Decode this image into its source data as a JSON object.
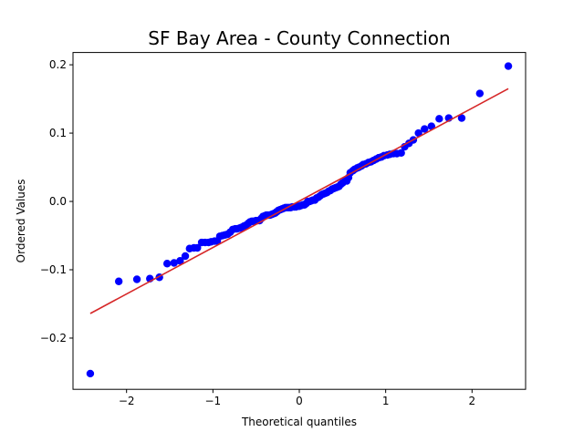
{
  "chart_data": {
    "type": "scatter",
    "title": "SF Bay Area - County Connection",
    "xlabel": "Theoretical quantiles",
    "ylabel": "Ordered Values",
    "xlim": [
      -2.62,
      2.62
    ],
    "ylim": [
      -0.275,
      0.218
    ],
    "x_ticks": [
      -2,
      -1,
      0,
      1,
      2
    ],
    "y_ticks": [
      -0.2,
      -0.1,
      0.0,
      0.1,
      0.2
    ],
    "x_tick_labels": [
      "−2",
      "−1",
      "0",
      "1",
      "2"
    ],
    "y_tick_labels": [
      "−0.2",
      "−0.1",
      "0.0",
      "0.1",
      "0.2"
    ],
    "grid": false,
    "colors": {
      "points": "#0000ff",
      "fit_line": "#d62728",
      "axes": "#000000"
    },
    "points": {
      "x": [
        -2.42,
        -2.09,
        -1.88,
        -1.73,
        -1.62,
        -1.53,
        -1.45,
        -1.38,
        -1.32,
        -1.27,
        -1.22,
        -1.18,
        -1.13,
        -1.09,
        -1.05,
        -1.02,
        -0.98,
        -0.95,
        -0.92,
        -0.89,
        -0.86,
        -0.83,
        -0.8,
        -0.77,
        -0.74,
        -0.72,
        -0.69,
        -0.67,
        -0.64,
        -0.62,
        -0.59,
        -0.57,
        -0.55,
        -0.53,
        -0.5,
        -0.48,
        -0.46,
        -0.44,
        -0.42,
        -0.4,
        -0.38,
        -0.36,
        -0.34,
        -0.32,
        -0.3,
        -0.28,
        -0.26,
        -0.24,
        -0.22,
        -0.2,
        -0.18,
        -0.16,
        -0.14,
        -0.12,
        -0.1,
        -0.08,
        -0.06,
        -0.04,
        -0.02,
        0.0,
        0.02,
        0.04,
        0.06,
        0.08,
        0.1,
        0.12,
        0.14,
        0.16,
        0.18,
        0.2,
        0.22,
        0.24,
        0.26,
        0.28,
        0.3,
        0.32,
        0.34,
        0.36,
        0.38,
        0.4,
        0.42,
        0.44,
        0.46,
        0.48,
        0.5,
        0.53,
        0.55,
        0.57,
        0.59,
        0.62,
        0.64,
        0.67,
        0.69,
        0.72,
        0.74,
        0.77,
        0.8,
        0.83,
        0.86,
        0.89,
        0.92,
        0.95,
        0.98,
        1.02,
        1.05,
        1.09,
        1.13,
        1.18,
        1.22,
        1.27,
        1.32,
        1.38,
        1.45,
        1.53,
        1.62,
        1.73,
        1.88,
        2.09,
        2.42
      ],
      "y": [
        -0.252,
        -0.117,
        -0.114,
        -0.113,
        -0.111,
        -0.091,
        -0.09,
        -0.087,
        -0.08,
        -0.069,
        -0.068,
        -0.068,
        -0.06,
        -0.06,
        -0.06,
        -0.059,
        -0.058,
        -0.058,
        -0.051,
        -0.05,
        -0.049,
        -0.048,
        -0.045,
        -0.041,
        -0.04,
        -0.04,
        -0.039,
        -0.038,
        -0.036,
        -0.035,
        -0.032,
        -0.03,
        -0.029,
        -0.029,
        -0.028,
        -0.028,
        -0.028,
        -0.025,
        -0.022,
        -0.021,
        -0.02,
        -0.02,
        -0.02,
        -0.019,
        -0.018,
        -0.017,
        -0.015,
        -0.013,
        -0.012,
        -0.011,
        -0.01,
        -0.009,
        -0.009,
        -0.009,
        -0.009,
        -0.008,
        -0.008,
        -0.008,
        -0.007,
        -0.007,
        -0.006,
        -0.005,
        -0.005,
        -0.003,
        0.0,
        0.0,
        0.001,
        0.002,
        0.002,
        0.005,
        0.006,
        0.008,
        0.01,
        0.011,
        0.012,
        0.013,
        0.015,
        0.016,
        0.018,
        0.019,
        0.02,
        0.021,
        0.022,
        0.025,
        0.027,
        0.03,
        0.03,
        0.035,
        0.042,
        0.045,
        0.047,
        0.049,
        0.05,
        0.052,
        0.054,
        0.055,
        0.057,
        0.058,
        0.06,
        0.062,
        0.064,
        0.065,
        0.067,
        0.068,
        0.069,
        0.07,
        0.07,
        0.071,
        0.08,
        0.085,
        0.09,
        0.1,
        0.106,
        0.11,
        0.121,
        0.122,
        0.122,
        0.158,
        0.198
      ]
    },
    "fit_line": {
      "x": [
        -2.42,
        2.42
      ],
      "y": [
        -0.164,
        0.165
      ]
    }
  }
}
